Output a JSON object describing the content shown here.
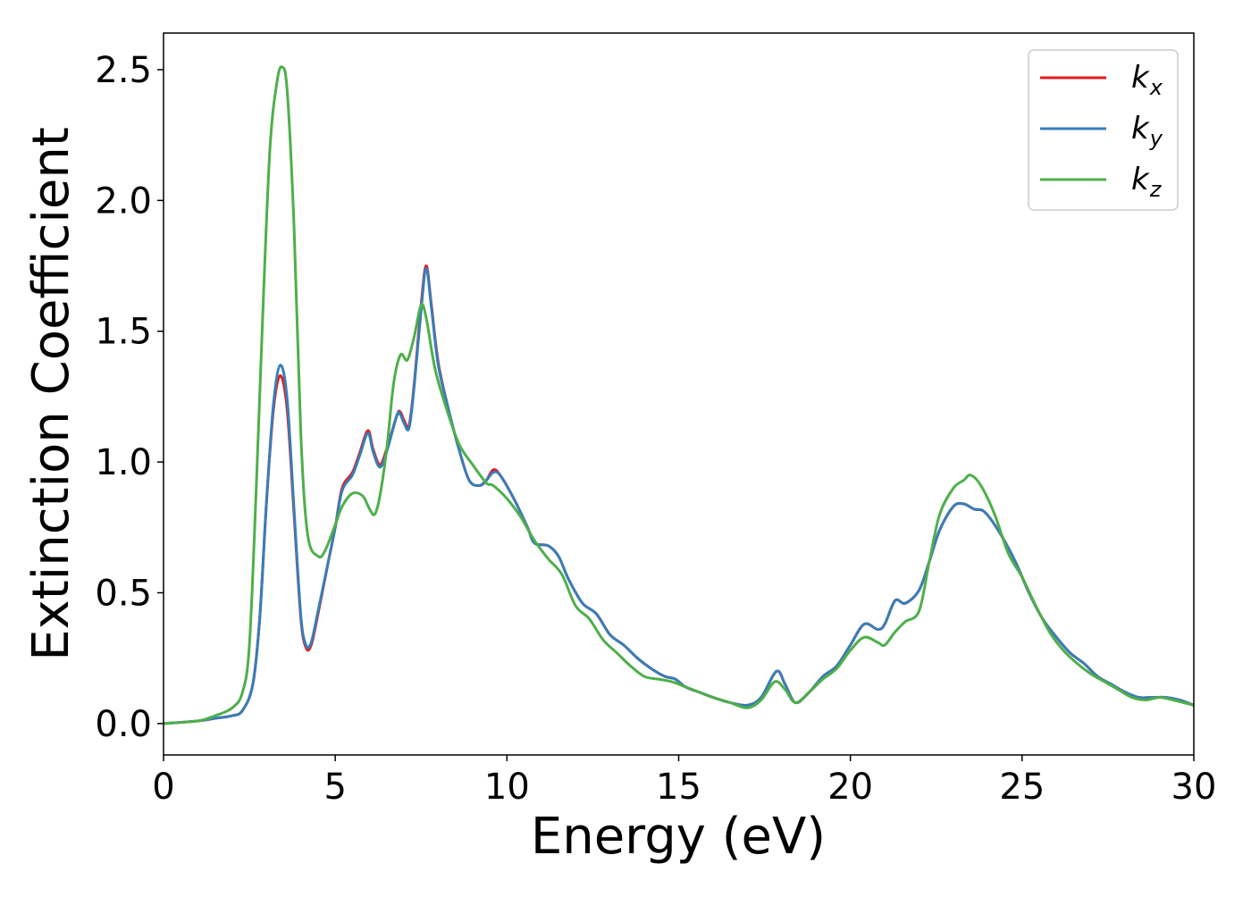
{
  "chart_data": {
    "type": "line",
    "xlabel": "Energy (eV)",
    "ylabel": "Extinction Coefficient",
    "xlim": [
      0,
      30
    ],
    "ylim": [
      -0.12,
      2.64
    ],
    "xticks": [
      "0",
      "5",
      "10",
      "15",
      "20",
      "25",
      "30"
    ],
    "yticks": [
      "0.0",
      "0.5",
      "1.0",
      "1.5",
      "2.0",
      "2.5"
    ],
    "grid": false,
    "legend_position": "top-right",
    "series": [
      {
        "name": "k_x",
        "label_base": "k",
        "label_sub": "x",
        "color": "#e41a1c",
        "points": [
          [
            0,
            0
          ],
          [
            1,
            0.01
          ],
          [
            1.5,
            0.02
          ],
          [
            2,
            0.03
          ],
          [
            2.3,
            0.05
          ],
          [
            2.6,
            0.15
          ],
          [
            2.8,
            0.4
          ],
          [
            3.0,
            0.85
          ],
          [
            3.2,
            1.2
          ],
          [
            3.4,
            1.33
          ],
          [
            3.6,
            1.2
          ],
          [
            3.8,
            0.8
          ],
          [
            4.0,
            0.4
          ],
          [
            4.15,
            0.29
          ],
          [
            4.3,
            0.3
          ],
          [
            4.5,
            0.42
          ],
          [
            4.8,
            0.62
          ],
          [
            5.0,
            0.75
          ],
          [
            5.2,
            0.9
          ],
          [
            5.5,
            0.96
          ],
          [
            5.7,
            1.03
          ],
          [
            5.95,
            1.12
          ],
          [
            6.1,
            1.05
          ],
          [
            6.3,
            0.99
          ],
          [
            6.5,
            1.05
          ],
          [
            6.8,
            1.18
          ],
          [
            6.9,
            1.19
          ],
          [
            7.0,
            1.16
          ],
          [
            7.15,
            1.14
          ],
          [
            7.3,
            1.3
          ],
          [
            7.5,
            1.6
          ],
          [
            7.65,
            1.75
          ],
          [
            7.8,
            1.6
          ],
          [
            8.0,
            1.38
          ],
          [
            8.3,
            1.2
          ],
          [
            8.6,
            1.05
          ],
          [
            8.9,
            0.93
          ],
          [
            9.2,
            0.91
          ],
          [
            9.4,
            0.93
          ],
          [
            9.6,
            0.97
          ],
          [
            9.8,
            0.95
          ],
          [
            10.2,
            0.86
          ],
          [
            10.6,
            0.75
          ],
          [
            10.8,
            0.69
          ],
          [
            11.2,
            0.68
          ],
          [
            11.5,
            0.64
          ],
          [
            11.8,
            0.55
          ],
          [
            12.2,
            0.46
          ],
          [
            12.6,
            0.42
          ],
          [
            13.0,
            0.34
          ],
          [
            13.4,
            0.3
          ],
          [
            13.8,
            0.25
          ],
          [
            14.2,
            0.21
          ],
          [
            14.6,
            0.18
          ],
          [
            14.9,
            0.17
          ],
          [
            15.2,
            0.14
          ],
          [
            15.6,
            0.12
          ],
          [
            16.0,
            0.1
          ],
          [
            16.5,
            0.08
          ],
          [
            17.0,
            0.07
          ],
          [
            17.4,
            0.1
          ],
          [
            17.85,
            0.2
          ],
          [
            18.1,
            0.15
          ],
          [
            18.4,
            0.08
          ],
          [
            18.8,
            0.12
          ],
          [
            19.2,
            0.18
          ],
          [
            19.6,
            0.22
          ],
          [
            20.0,
            0.3
          ],
          [
            20.4,
            0.38
          ],
          [
            20.8,
            0.36
          ],
          [
            21.0,
            0.38
          ],
          [
            21.3,
            0.47
          ],
          [
            21.6,
            0.46
          ],
          [
            22.0,
            0.51
          ],
          [
            22.3,
            0.62
          ],
          [
            22.6,
            0.74
          ],
          [
            23.0,
            0.83
          ],
          [
            23.3,
            0.84
          ],
          [
            23.6,
            0.82
          ],
          [
            23.9,
            0.81
          ],
          [
            24.3,
            0.74
          ],
          [
            24.8,
            0.62
          ],
          [
            25.2,
            0.5
          ],
          [
            25.6,
            0.4
          ],
          [
            26.0,
            0.33
          ],
          [
            26.4,
            0.27
          ],
          [
            26.8,
            0.23
          ],
          [
            27.2,
            0.18
          ],
          [
            27.6,
            0.15
          ],
          [
            28.0,
            0.12
          ],
          [
            28.4,
            0.1
          ],
          [
            28.8,
            0.1
          ],
          [
            29.2,
            0.1
          ],
          [
            29.6,
            0.09
          ],
          [
            30.0,
            0.07
          ]
        ]
      },
      {
        "name": "k_y",
        "label_base": "k",
        "label_sub": "y",
        "color": "#377eb8",
        "points": [
          [
            0,
            0
          ],
          [
            1,
            0.01
          ],
          [
            1.5,
            0.02
          ],
          [
            2,
            0.03
          ],
          [
            2.3,
            0.05
          ],
          [
            2.6,
            0.15
          ],
          [
            2.8,
            0.4
          ],
          [
            3.0,
            0.85
          ],
          [
            3.2,
            1.22
          ],
          [
            3.4,
            1.37
          ],
          [
            3.6,
            1.24
          ],
          [
            3.8,
            0.82
          ],
          [
            4.0,
            0.41
          ],
          [
            4.15,
            0.3
          ],
          [
            4.3,
            0.31
          ],
          [
            4.5,
            0.43
          ],
          [
            4.8,
            0.62
          ],
          [
            5.0,
            0.75
          ],
          [
            5.2,
            0.89
          ],
          [
            5.5,
            0.95
          ],
          [
            5.7,
            1.02
          ],
          [
            5.95,
            1.11
          ],
          [
            6.1,
            1.04
          ],
          [
            6.3,
            0.98
          ],
          [
            6.5,
            1.04
          ],
          [
            6.8,
            1.18
          ],
          [
            6.9,
            1.18
          ],
          [
            7.0,
            1.15
          ],
          [
            7.15,
            1.13
          ],
          [
            7.3,
            1.29
          ],
          [
            7.5,
            1.58
          ],
          [
            7.65,
            1.74
          ],
          [
            7.8,
            1.59
          ],
          [
            8.0,
            1.37
          ],
          [
            8.3,
            1.2
          ],
          [
            8.6,
            1.05
          ],
          [
            8.9,
            0.93
          ],
          [
            9.2,
            0.91
          ],
          [
            9.4,
            0.93
          ],
          [
            9.6,
            0.96
          ],
          [
            9.8,
            0.95
          ],
          [
            10.2,
            0.86
          ],
          [
            10.6,
            0.75
          ],
          [
            10.8,
            0.69
          ],
          [
            11.2,
            0.68
          ],
          [
            11.5,
            0.64
          ],
          [
            11.8,
            0.55
          ],
          [
            12.2,
            0.46
          ],
          [
            12.6,
            0.42
          ],
          [
            13.0,
            0.34
          ],
          [
            13.4,
            0.3
          ],
          [
            13.8,
            0.25
          ],
          [
            14.2,
            0.21
          ],
          [
            14.6,
            0.18
          ],
          [
            14.9,
            0.17
          ],
          [
            15.2,
            0.14
          ],
          [
            15.6,
            0.12
          ],
          [
            16.0,
            0.1
          ],
          [
            16.5,
            0.08
          ],
          [
            17.0,
            0.07
          ],
          [
            17.4,
            0.1
          ],
          [
            17.85,
            0.2
          ],
          [
            18.1,
            0.15
          ],
          [
            18.4,
            0.08
          ],
          [
            18.8,
            0.12
          ],
          [
            19.2,
            0.18
          ],
          [
            19.6,
            0.22
          ],
          [
            20.0,
            0.3
          ],
          [
            20.4,
            0.38
          ],
          [
            20.8,
            0.36
          ],
          [
            21.0,
            0.38
          ],
          [
            21.3,
            0.47
          ],
          [
            21.6,
            0.46
          ],
          [
            22.0,
            0.51
          ],
          [
            22.3,
            0.62
          ],
          [
            22.6,
            0.74
          ],
          [
            23.0,
            0.83
          ],
          [
            23.3,
            0.84
          ],
          [
            23.6,
            0.82
          ],
          [
            23.9,
            0.81
          ],
          [
            24.3,
            0.74
          ],
          [
            24.8,
            0.62
          ],
          [
            25.2,
            0.5
          ],
          [
            25.6,
            0.4
          ],
          [
            26.0,
            0.33
          ],
          [
            26.4,
            0.27
          ],
          [
            26.8,
            0.23
          ],
          [
            27.2,
            0.18
          ],
          [
            27.6,
            0.15
          ],
          [
            28.0,
            0.12
          ],
          [
            28.4,
            0.1
          ],
          [
            28.8,
            0.1
          ],
          [
            29.2,
            0.1
          ],
          [
            29.6,
            0.09
          ],
          [
            30.0,
            0.07
          ]
        ]
      },
      {
        "name": "k_z",
        "label_base": "k",
        "label_sub": "z",
        "color": "#4daf4a",
        "points": [
          [
            0,
            0
          ],
          [
            1,
            0.01
          ],
          [
            1.5,
            0.03
          ],
          [
            2,
            0.06
          ],
          [
            2.3,
            0.12
          ],
          [
            2.5,
            0.3
          ],
          [
            2.7,
            0.9
          ],
          [
            2.9,
            1.6
          ],
          [
            3.1,
            2.2
          ],
          [
            3.3,
            2.45
          ],
          [
            3.45,
            2.51
          ],
          [
            3.6,
            2.42
          ],
          [
            3.8,
            1.9
          ],
          [
            4.0,
            1.1
          ],
          [
            4.2,
            0.72
          ],
          [
            4.5,
            0.64
          ],
          [
            4.7,
            0.66
          ],
          [
            5.0,
            0.76
          ],
          [
            5.2,
            0.83
          ],
          [
            5.5,
            0.88
          ],
          [
            5.8,
            0.87
          ],
          [
            6.0,
            0.82
          ],
          [
            6.15,
            0.8
          ],
          [
            6.3,
            0.87
          ],
          [
            6.5,
            1.05
          ],
          [
            6.7,
            1.3
          ],
          [
            6.9,
            1.41
          ],
          [
            7.1,
            1.39
          ],
          [
            7.3,
            1.48
          ],
          [
            7.5,
            1.6
          ],
          [
            7.65,
            1.55
          ],
          [
            7.9,
            1.36
          ],
          [
            8.2,
            1.22
          ],
          [
            8.6,
            1.07
          ],
          [
            9.0,
            0.99
          ],
          [
            9.4,
            0.92
          ],
          [
            9.6,
            0.91
          ],
          [
            10.0,
            0.86
          ],
          [
            10.4,
            0.79
          ],
          [
            10.8,
            0.7
          ],
          [
            11.2,
            0.63
          ],
          [
            11.6,
            0.57
          ],
          [
            12.0,
            0.45
          ],
          [
            12.4,
            0.4
          ],
          [
            12.8,
            0.32
          ],
          [
            13.2,
            0.27
          ],
          [
            13.6,
            0.22
          ],
          [
            14.0,
            0.18
          ],
          [
            14.4,
            0.17
          ],
          [
            14.8,
            0.16
          ],
          [
            15.2,
            0.14
          ],
          [
            15.6,
            0.12
          ],
          [
            16.0,
            0.1
          ],
          [
            16.5,
            0.08
          ],
          [
            17.0,
            0.06
          ],
          [
            17.4,
            0.09
          ],
          [
            17.8,
            0.16
          ],
          [
            18.1,
            0.13
          ],
          [
            18.4,
            0.08
          ],
          [
            18.8,
            0.12
          ],
          [
            19.2,
            0.17
          ],
          [
            19.6,
            0.21
          ],
          [
            20.0,
            0.28
          ],
          [
            20.4,
            0.33
          ],
          [
            20.8,
            0.31
          ],
          [
            21.0,
            0.3
          ],
          [
            21.3,
            0.35
          ],
          [
            21.6,
            0.39
          ],
          [
            22.0,
            0.43
          ],
          [
            22.3,
            0.62
          ],
          [
            22.6,
            0.8
          ],
          [
            23.0,
            0.9
          ],
          [
            23.3,
            0.93
          ],
          [
            23.5,
            0.95
          ],
          [
            23.8,
            0.91
          ],
          [
            24.2,
            0.8
          ],
          [
            24.6,
            0.65
          ],
          [
            25.0,
            0.56
          ],
          [
            25.4,
            0.45
          ],
          [
            25.8,
            0.35
          ],
          [
            26.2,
            0.28
          ],
          [
            26.6,
            0.23
          ],
          [
            27.0,
            0.19
          ],
          [
            27.4,
            0.16
          ],
          [
            27.8,
            0.13
          ],
          [
            28.2,
            0.1
          ],
          [
            28.6,
            0.09
          ],
          [
            29.0,
            0.1
          ],
          [
            29.4,
            0.09
          ],
          [
            30.0,
            0.07
          ]
        ]
      }
    ]
  }
}
